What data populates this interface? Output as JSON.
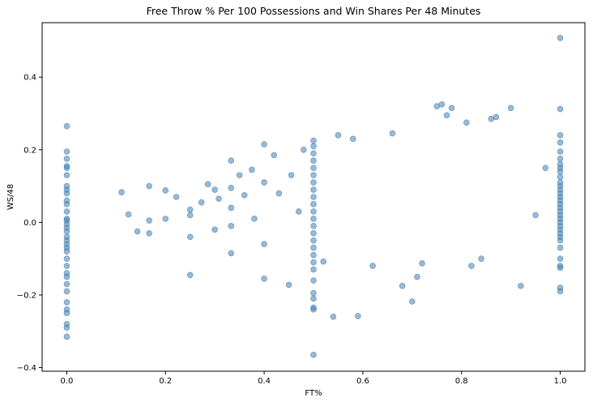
{
  "chart_data": {
    "type": "scatter",
    "title": "Free Throw % Per 100 Possessions and Win Shares Per 48 Minutes",
    "xlabel": "FT%",
    "ylabel": "WS/48",
    "xlim": [
      -0.05,
      1.05
    ],
    "ylim": [
      -0.41,
      0.55
    ],
    "x_ticks": [
      {
        "value": 0.0,
        "label": "0.0"
      },
      {
        "value": 0.2,
        "label": "0.2"
      },
      {
        "value": 0.4,
        "label": "0.4"
      },
      {
        "value": 0.6,
        "label": "0.6"
      },
      {
        "value": 0.8,
        "label": "0.8"
      },
      {
        "value": 1.0,
        "label": "1.0"
      }
    ],
    "y_ticks": [
      {
        "value": -0.4,
        "label": "−0.4"
      },
      {
        "value": -0.2,
        "label": "−0.2"
      },
      {
        "value": 0.0,
        "label": "0.0"
      },
      {
        "value": 0.2,
        "label": "0.2"
      },
      {
        "value": 0.4,
        "label": "0.4"
      }
    ],
    "grid": false,
    "legend": "none",
    "marker_color": "#4682b4",
    "marker_alpha": 0.55,
    "points": [
      [
        0.0,
        0.265
      ],
      [
        0.0,
        0.195
      ],
      [
        0.0,
        0.175
      ],
      [
        0.0,
        0.155
      ],
      [
        0.0,
        0.15
      ],
      [
        0.0,
        0.13
      ],
      [
        0.0,
        0.1
      ],
      [
        0.0,
        0.09
      ],
      [
        0.0,
        0.08
      ],
      [
        0.0,
        0.06
      ],
      [
        0.0,
        0.05
      ],
      [
        0.0,
        0.03
      ],
      [
        0.0,
        0.01
      ],
      [
        0.0,
        0.005
      ],
      [
        0.0,
        -0.005
      ],
      [
        0.0,
        -0.015
      ],
      [
        0.0,
        -0.025
      ],
      [
        0.0,
        -0.04
      ],
      [
        0.0,
        -0.05
      ],
      [
        0.0,
        -0.06
      ],
      [
        0.0,
        -0.07
      ],
      [
        0.0,
        -0.08
      ],
      [
        0.0,
        -0.1
      ],
      [
        0.0,
        -0.12
      ],
      [
        0.0,
        -0.14
      ],
      [
        0.0,
        -0.15
      ],
      [
        0.0,
        -0.17
      ],
      [
        0.0,
        -0.19
      ],
      [
        0.0,
        -0.22
      ],
      [
        0.0,
        -0.24
      ],
      [
        0.0,
        -0.25
      ],
      [
        0.0,
        -0.28
      ],
      [
        0.0,
        -0.29
      ],
      [
        0.0,
        -0.315
      ],
      [
        1.0,
        0.508
      ],
      [
        1.0,
        0.312
      ],
      [
        1.0,
        0.24
      ],
      [
        1.0,
        0.22
      ],
      [
        1.0,
        0.195
      ],
      [
        1.0,
        0.175
      ],
      [
        1.0,
        0.16
      ],
      [
        1.0,
        0.15
      ],
      [
        1.0,
        0.14
      ],
      [
        1.0,
        0.125
      ],
      [
        1.0,
        0.11
      ],
      [
        1.0,
        0.1
      ],
      [
        1.0,
        0.09
      ],
      [
        1.0,
        0.08
      ],
      [
        1.0,
        0.07
      ],
      [
        1.0,
        0.06
      ],
      [
        1.0,
        0.05
      ],
      [
        1.0,
        0.04
      ],
      [
        1.0,
        0.03
      ],
      [
        1.0,
        0.02
      ],
      [
        1.0,
        0.01
      ],
      [
        1.0,
        0.0
      ],
      [
        1.0,
        -0.01
      ],
      [
        1.0,
        -0.02
      ],
      [
        1.0,
        -0.03
      ],
      [
        1.0,
        -0.04
      ],
      [
        1.0,
        -0.05
      ],
      [
        1.0,
        -0.07
      ],
      [
        1.0,
        -0.1
      ],
      [
        1.0,
        -0.12
      ],
      [
        1.0,
        -0.125
      ],
      [
        1.0,
        -0.18
      ],
      [
        1.0,
        -0.19
      ],
      [
        0.5,
        0.225
      ],
      [
        0.5,
        0.21
      ],
      [
        0.5,
        0.19
      ],
      [
        0.5,
        0.17
      ],
      [
        0.5,
        0.15
      ],
      [
        0.5,
        0.13
      ],
      [
        0.5,
        0.11
      ],
      [
        0.5,
        0.09
      ],
      [
        0.5,
        0.07
      ],
      [
        0.5,
        0.05
      ],
      [
        0.5,
        0.03
      ],
      [
        0.5,
        0.01
      ],
      [
        0.5,
        -0.01
      ],
      [
        0.5,
        -0.03
      ],
      [
        0.5,
        -0.05
      ],
      [
        0.5,
        -0.07
      ],
      [
        0.5,
        -0.09
      ],
      [
        0.5,
        -0.11
      ],
      [
        0.5,
        -0.13
      ],
      [
        0.5,
        -0.16
      ],
      [
        0.5,
        -0.195
      ],
      [
        0.5,
        -0.21
      ],
      [
        0.5,
        -0.235
      ],
      [
        0.5,
        -0.24
      ],
      [
        0.5,
        -0.365
      ],
      [
        0.111,
        0.083
      ],
      [
        0.125,
        0.022
      ],
      [
        0.143,
        -0.025
      ],
      [
        0.167,
        0.1
      ],
      [
        0.167,
        0.005
      ],
      [
        0.167,
        -0.03
      ],
      [
        0.2,
        0.088
      ],
      [
        0.2,
        0.01
      ],
      [
        0.222,
        0.07
      ],
      [
        0.25,
        0.035
      ],
      [
        0.25,
        0.02
      ],
      [
        0.25,
        -0.04
      ],
      [
        0.25,
        -0.145
      ],
      [
        0.273,
        0.055
      ],
      [
        0.286,
        0.105
      ],
      [
        0.3,
        0.09
      ],
      [
        0.3,
        -0.02
      ],
      [
        0.308,
        0.065
      ],
      [
        0.333,
        0.17
      ],
      [
        0.333,
        0.095
      ],
      [
        0.333,
        0.04
      ],
      [
        0.333,
        -0.01
      ],
      [
        0.333,
        -0.085
      ],
      [
        0.35,
        0.13
      ],
      [
        0.36,
        0.075
      ],
      [
        0.375,
        0.145
      ],
      [
        0.38,
        0.01
      ],
      [
        0.4,
        0.215
      ],
      [
        0.4,
        0.11
      ],
      [
        0.4,
        -0.06
      ],
      [
        0.4,
        -0.155
      ],
      [
        0.42,
        0.185
      ],
      [
        0.43,
        0.08
      ],
      [
        0.45,
        -0.172
      ],
      [
        0.455,
        0.13
      ],
      [
        0.47,
        0.03
      ],
      [
        0.48,
        0.2
      ],
      [
        0.52,
        -0.108
      ],
      [
        0.54,
        -0.26
      ],
      [
        0.55,
        0.24
      ],
      [
        0.58,
        0.23
      ],
      [
        0.59,
        -0.258
      ],
      [
        0.62,
        -0.12
      ],
      [
        0.66,
        0.245
      ],
      [
        0.68,
        -0.175
      ],
      [
        0.7,
        -0.218
      ],
      [
        0.71,
        -0.15
      ],
      [
        0.72,
        -0.113
      ],
      [
        0.75,
        0.32
      ],
      [
        0.76,
        0.325
      ],
      [
        0.77,
        0.295
      ],
      [
        0.78,
        0.315
      ],
      [
        0.81,
        0.275
      ],
      [
        0.82,
        -0.12
      ],
      [
        0.84,
        -0.1
      ],
      [
        0.86,
        0.285
      ],
      [
        0.87,
        0.29
      ],
      [
        0.9,
        0.315
      ],
      [
        0.92,
        -0.175
      ],
      [
        0.95,
        0.02
      ],
      [
        0.97,
        0.15
      ]
    ]
  }
}
